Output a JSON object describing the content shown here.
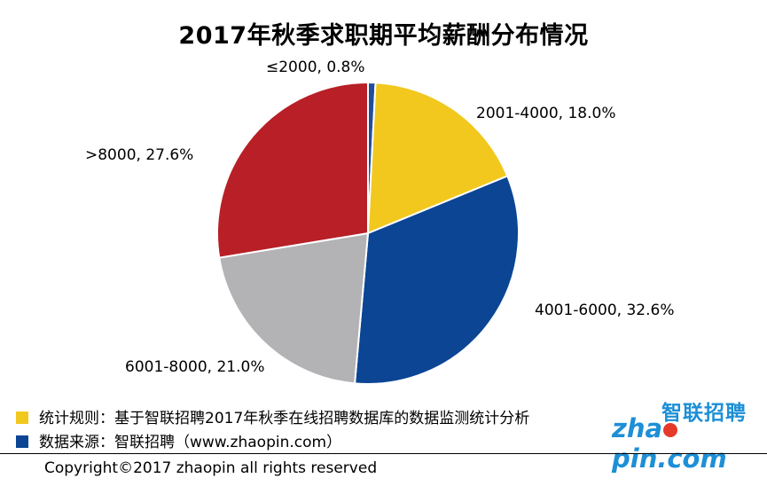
{
  "chart_data": {
    "type": "pie",
    "title": "2017年秋季求职期平均薪酬分布情况",
    "slices": [
      {
        "label": "≤2000, 0.8%",
        "value": 0.8,
        "color": "#1f4e9c"
      },
      {
        "label": "2001-4000, 18.0%",
        "value": 18.0,
        "color": "#f2c81e"
      },
      {
        "label": "4001-6000, 32.6%",
        "value": 32.6,
        "color": "#0b4594"
      },
      {
        "label": "6001-8000, 21.0%",
        "value": 21.0,
        "color": "#b3b3b5"
      },
      {
        "label": ">8000, 27.6%",
        "value": 27.6,
        "color": "#b81f26"
      }
    ]
  },
  "notes": [
    {
      "text": "统计规则：基于智联招聘2017年秋季在线招聘数据库的数据监测统计分析",
      "color": "#f2c81e"
    },
    {
      "text": "数据来源：智联招聘（www.zhaopin.com）",
      "color": "#0b4594"
    }
  ],
  "logo": {
    "cn": "智联招聘",
    "en_left": "zha",
    "en_right": "pin.com"
  },
  "copyright": "Copyright©2017 zhaopin all rights reserved"
}
